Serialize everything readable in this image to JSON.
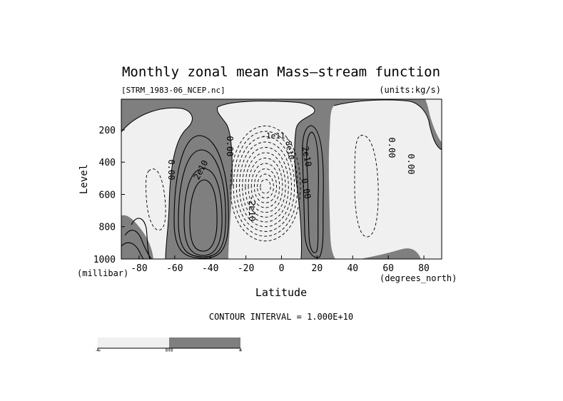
{
  "chart_data": {
    "type": "contour",
    "title": "Monthly zonal mean Mass—stream function",
    "file_label": "[STRM_1983-06_NCEP.nc]",
    "units_label": "(units:kg/s)",
    "xlabel": "Latitude",
    "xunit": "(degrees_north)",
    "ylabel": "Level",
    "yunit": "(millibar)",
    "xlim": [
      -90,
      90
    ],
    "ylim": [
      1000,
      10
    ],
    "x_ticks": [
      -80,
      -60,
      -40,
      -20,
      0,
      20,
      40,
      60,
      80
    ],
    "y_ticks": [
      200,
      400,
      600,
      800,
      1000
    ],
    "contour_interval_text": "CONTOUR INTERVAL = 1.000E+10",
    "contour_labels": [
      "2e10",
      "0.00",
      "-2e10",
      "0.00",
      "-1e11",
      "-8e10",
      "2e10",
      "0.00",
      "0.00",
      "0.00"
    ],
    "shading": {
      "positive_color": "#7f7f7f",
      "negative_color": "#f0f0f0"
    },
    "colorbar": {
      "labels": [
        "-∞",
        "0.0",
        "∞"
      ]
    }
  }
}
